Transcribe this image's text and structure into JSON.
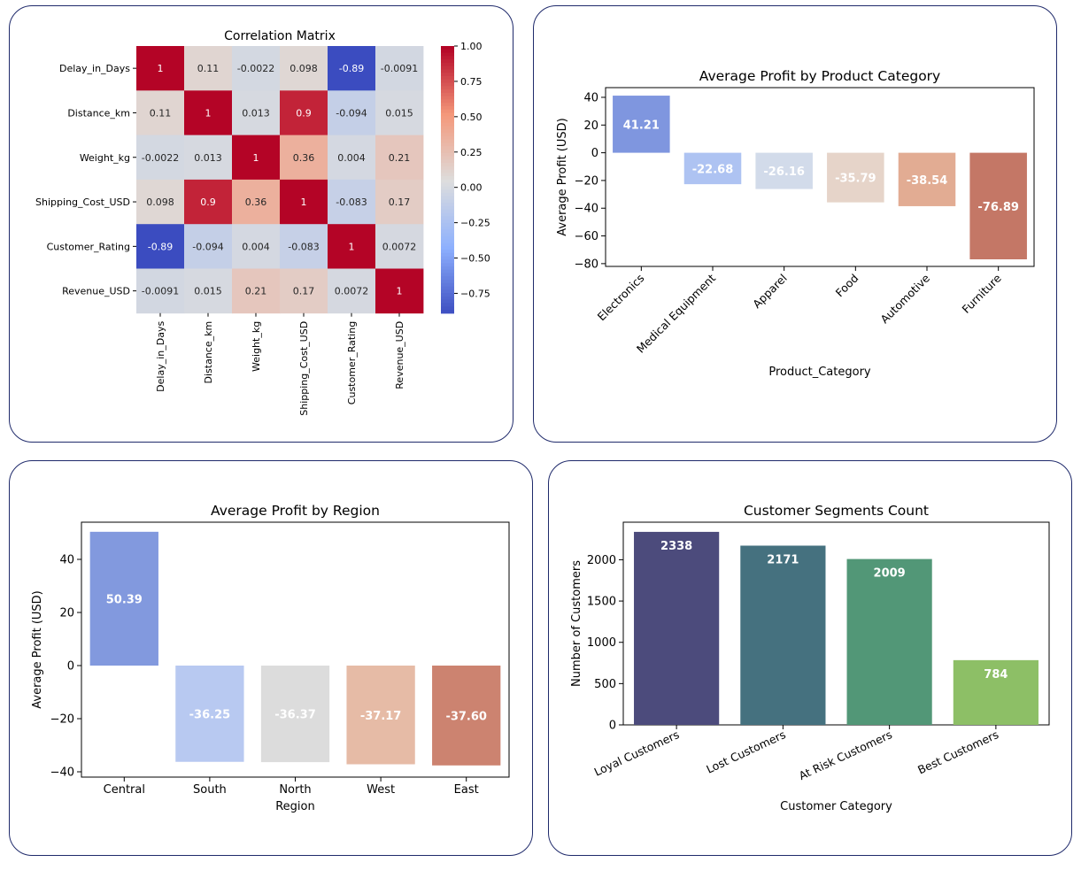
{
  "chart_data": [
    {
      "type": "heatmap",
      "title": "Correlation Matrix",
      "variables": [
        "Delay_in_Days",
        "Distance_km",
        "Weight_kg",
        "Shipping_Cost_USD",
        "Customer_Rating",
        "Revenue_USD"
      ],
      "cell_labels": [
        [
          "1",
          "0.11",
          "-0.0022",
          "0.098",
          "-0.89",
          "-0.0091"
        ],
        [
          "0.11",
          "1",
          "0.013",
          "0.9",
          "-0.094",
          "0.015"
        ],
        [
          "-0.0022",
          "0.013",
          "1",
          "0.36",
          "0.004",
          "0.21"
        ],
        [
          "0.098",
          "0.9",
          "0.36",
          "1",
          "-0.083",
          "0.17"
        ],
        [
          "-0.89",
          "-0.094",
          "0.004",
          "-0.083",
          "1",
          "0.0072"
        ],
        [
          "-0.0091",
          "0.015",
          "0.21",
          "0.17",
          "0.0072",
          "1"
        ]
      ],
      "colormap": "coolwarm",
      "vmin": -0.89,
      "vmax": 1.0,
      "colorbar_ticks": [
        "1.00",
        "0.75",
        "0.50",
        "0.25",
        "0.00",
        "−0.25",
        "−0.50",
        "−0.75"
      ],
      "colorbar_tick_values": [
        1.0,
        0.75,
        0.5,
        0.25,
        0.0,
        -0.25,
        -0.5,
        -0.75
      ]
    },
    {
      "type": "bar",
      "title": "Average Profit by Product Category",
      "xlabel": "Product_Category",
      "ylabel": "Average Profit (USD)",
      "categories": [
        "Electronics",
        "Medical Equipment",
        "Apparel",
        "Food",
        "Automotive",
        "Furniture"
      ],
      "values": [
        41.21,
        -22.68,
        -26.16,
        -35.79,
        -38.54,
        -76.89
      ],
      "value_labels": [
        "41.21",
        "-22.68",
        "-26.16",
        "-35.79",
        "-38.54",
        "-76.89"
      ],
      "colors": [
        "#7f96df",
        "#aec3f2",
        "#d2dbea",
        "#e6d4c9",
        "#e2ac93",
        "#c47766"
      ],
      "ylim": [
        -82,
        47
      ],
      "yticks": [
        40,
        20,
        0,
        -20,
        -40,
        -60,
        -80
      ],
      "ytick_labels": [
        "40",
        "20",
        "0",
        "−20",
        "−40",
        "−60",
        "−80"
      ]
    },
    {
      "type": "bar",
      "title": "Average Profit by Region",
      "xlabel": "Region",
      "ylabel": "Average Profit (USD)",
      "categories": [
        "Central",
        "South",
        "North",
        "West",
        "East"
      ],
      "values": [
        50.39,
        -36.25,
        -36.37,
        -37.17,
        -37.6
      ],
      "value_labels": [
        "50.39",
        "-36.25",
        "-36.37",
        "-37.17",
        "-37.60"
      ],
      "colors": [
        "#8299de",
        "#b8c9f1",
        "#dcdcdc",
        "#e6bba6",
        "#cc8370"
      ],
      "ylim": [
        -42,
        54
      ],
      "yticks": [
        40,
        20,
        0,
        -20,
        -40
      ],
      "ytick_labels": [
        "40",
        "20",
        "0",
        "−20",
        "−40"
      ]
    },
    {
      "type": "bar",
      "title": "Customer Segments Count",
      "xlabel": "Customer Category",
      "ylabel": "Number of Customers",
      "categories": [
        "Loyal Customers",
        "Lost Customers",
        "At Risk Customers",
        "Best Customers"
      ],
      "values": [
        2338,
        2171,
        2009,
        784
      ],
      "value_labels": [
        "2338",
        "2171",
        "2009",
        "784"
      ],
      "colors": [
        "#4c4b7c",
        "#45717f",
        "#529777",
        "#8dbf66"
      ],
      "ylim": [
        0,
        2455
      ],
      "yticks": [
        0,
        500,
        1000,
        1500,
        2000
      ],
      "ytick_labels": [
        "0",
        "500",
        "1000",
        "1500",
        "2000"
      ]
    }
  ]
}
